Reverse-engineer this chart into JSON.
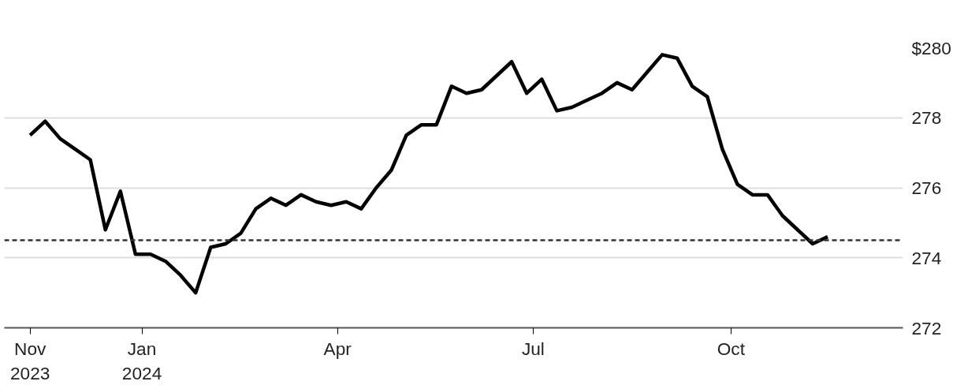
{
  "chart_data": {
    "type": "line",
    "x": [
      "2023-11-10",
      "2023-11-17",
      "2023-11-24",
      "2023-12-01",
      "2023-12-08",
      "2023-12-15",
      "2023-12-22",
      "2023-12-29",
      "2024-01-05",
      "2024-01-12",
      "2024-01-19",
      "2024-01-26",
      "2024-02-02",
      "2024-02-09",
      "2024-02-16",
      "2024-02-23",
      "2024-03-01",
      "2024-03-08",
      "2024-03-15",
      "2024-03-22",
      "2024-03-29",
      "2024-04-05",
      "2024-04-12",
      "2024-04-19",
      "2024-04-26",
      "2024-05-03",
      "2024-05-10",
      "2024-05-17",
      "2024-05-24",
      "2024-05-31",
      "2024-06-07",
      "2024-06-14",
      "2024-06-21",
      "2024-06-28",
      "2024-07-05",
      "2024-07-12",
      "2024-07-19",
      "2024-07-26",
      "2024-08-02",
      "2024-08-09",
      "2024-08-16",
      "2024-08-23",
      "2024-08-30",
      "2024-09-06",
      "2024-09-13",
      "2024-09-20",
      "2024-09-27",
      "2024-10-04",
      "2024-10-11",
      "2024-10-18",
      "2024-10-25",
      "2024-11-01",
      "2024-11-08",
      "2024-11-15"
    ],
    "series": [
      {
        "color": "#000000",
        "values": [
          277.5,
          277.9,
          277.4,
          277.1,
          276.8,
          274.8,
          275.9,
          274.1,
          274.1,
          273.9,
          273.5,
          273.0,
          274.3,
          274.4,
          274.7,
          275.4,
          275.7,
          275.5,
          275.8,
          275.6,
          275.5,
          275.6,
          275.4,
          276.0,
          276.5,
          277.5,
          277.8,
          277.8,
          278.9,
          278.7,
          278.8,
          279.2,
          279.6,
          278.7,
          279.1,
          278.2,
          278.3,
          278.5,
          278.7,
          279.0,
          278.8,
          279.3,
          279.8,
          279.7,
          278.9,
          278.6,
          277.1,
          276.1,
          275.8,
          275.8,
          275.2,
          274.8,
          274.4,
          274.6
        ]
      }
    ],
    "xlim": [
      "2023-10-29",
      "2024-12-20"
    ],
    "xticks": [
      {
        "value": "2023-11-10",
        "label": "Nov\n2023"
      },
      {
        "value": "2024-01-01",
        "label": "Jan\n2024"
      },
      {
        "value": "2024-04-01",
        "label": "Apr"
      },
      {
        "value": "2024-07-01",
        "label": "Jul"
      },
      {
        "value": "2024-10-01",
        "label": "Oct"
      }
    ],
    "ylim": [
      272,
      280
    ],
    "yticks": [
      272,
      274,
      276,
      278,
      {
        "value": 280,
        "label": "$280"
      }
    ],
    "ref_lines": [
      {
        "axis": "y",
        "value": 274.5,
        "color": "#333333",
        "line_style": "dashed"
      }
    ],
    "grid": "y",
    "marker": "none",
    "line_style": "solid"
  }
}
